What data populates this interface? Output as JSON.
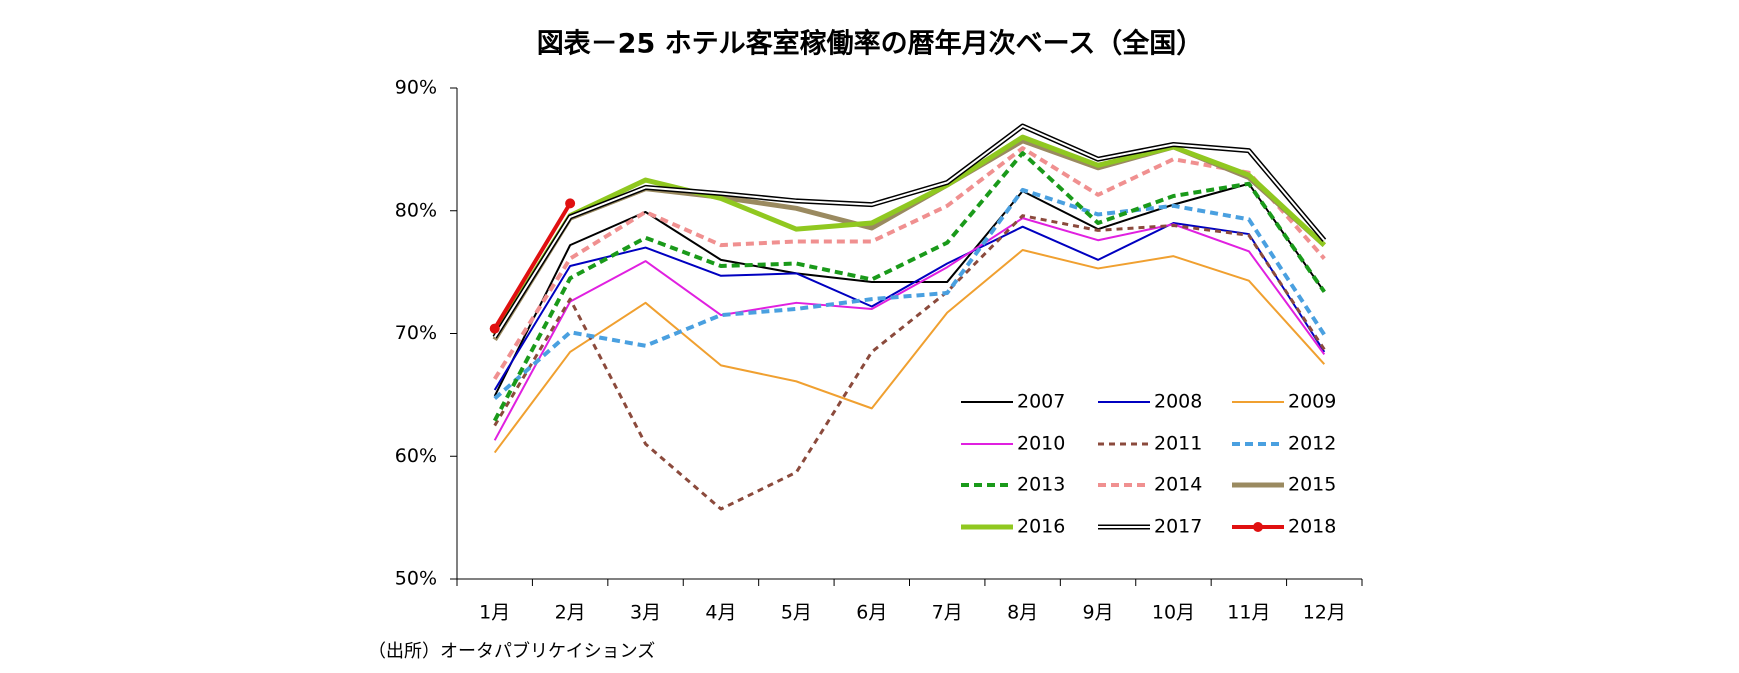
{
  "chart_data": {
    "type": "line",
    "title": "図表－25  ホテル客室稼働率の暦年月次ベース（全国）",
    "source": "（出所）オータパブリケイションズ",
    "categories": [
      "1月",
      "2月",
      "3月",
      "4月",
      "5月",
      "6月",
      "7月",
      "8月",
      "9月",
      "10月",
      "11月",
      "12月"
    ],
    "ylim": [
      50,
      90
    ],
    "yticks": [
      {
        "value": 50,
        "label": "50%"
      },
      {
        "value": 60,
        "label": "60%"
      },
      {
        "value": 70,
        "label": "70%"
      },
      {
        "value": 80,
        "label": "80%"
      },
      {
        "value": 90,
        "label": "90%"
      }
    ],
    "grid": false,
    "series": [
      {
        "name": "2007",
        "color": "#000000",
        "style": "solid",
        "width": 2,
        "values": [
          64.9,
          77.2,
          79.9,
          76.0,
          74.9,
          74.2,
          74.2,
          81.6,
          78.5,
          80.5,
          82.2,
          73.4
        ]
      },
      {
        "name": "2008",
        "color": "#0000c0",
        "style": "solid",
        "width": 2,
        "values": [
          65.4,
          75.5,
          77.0,
          74.7,
          74.9,
          72.2,
          75.7,
          78.7,
          76.0,
          79.0,
          78.1,
          68.5
        ]
      },
      {
        "name": "2009",
        "color": "#f0a030",
        "style": "solid",
        "width": 2,
        "values": [
          60.3,
          68.5,
          72.5,
          67.4,
          66.1,
          63.9,
          71.7,
          76.8,
          75.3,
          76.3,
          74.3,
          67.5
        ]
      },
      {
        "name": "2010",
        "color": "#e020e0",
        "style": "solid",
        "width": 2,
        "values": [
          61.3,
          72.6,
          75.9,
          71.5,
          72.5,
          72.0,
          75.4,
          79.4,
          77.6,
          78.9,
          76.7,
          68.3
        ]
      },
      {
        "name": "2011",
        "color": "#8b4a3c",
        "style": "dashed",
        "width": 3,
        "values": [
          62.5,
          72.8,
          61.0,
          55.7,
          58.7,
          68.5,
          73.4,
          79.6,
          78.4,
          78.8,
          78.0,
          68.7
        ]
      },
      {
        "name": "2012",
        "color": "#4aa0e0",
        "style": "dashed",
        "width": 4,
        "values": [
          64.7,
          70.1,
          69.0,
          71.5,
          72.0,
          72.8,
          73.3,
          81.7,
          79.7,
          80.4,
          79.3,
          69.9
        ]
      },
      {
        "name": "2013",
        "color": "#1a9a1a",
        "style": "dashed",
        "width": 4,
        "values": [
          62.9,
          74.5,
          77.8,
          75.5,
          75.7,
          74.4,
          77.4,
          84.7,
          79.0,
          81.2,
          82.2,
          73.4
        ]
      },
      {
        "name": "2014",
        "color": "#f09090",
        "style": "dashed",
        "width": 4,
        "values": [
          66.3,
          76.1,
          79.9,
          77.2,
          77.5,
          77.5,
          80.4,
          85.1,
          81.3,
          84.2,
          83.1,
          76.1
        ]
      },
      {
        "name": "2015",
        "color": "#9a8a60",
        "style": "solid",
        "width": 5,
        "values": [
          69.5,
          79.4,
          81.8,
          81.1,
          80.2,
          78.6,
          82.1,
          85.7,
          83.5,
          85.2,
          82.7,
          77.2
        ]
      },
      {
        "name": "2016",
        "color": "#90c820",
        "style": "solid",
        "width": 5,
        "values": [
          69.9,
          79.6,
          82.5,
          81.0,
          78.5,
          79.0,
          82.1,
          86.0,
          83.7,
          85.2,
          82.9,
          77.2
        ]
      },
      {
        "name": "2017",
        "color": "#000000",
        "style": "double",
        "width": 5,
        "values": [
          69.7,
          79.5,
          81.9,
          81.4,
          80.8,
          80.5,
          82.3,
          86.9,
          84.2,
          85.4,
          84.9,
          77.6
        ]
      },
      {
        "name": "2018",
        "color": "#e01010",
        "style": "marker",
        "width": 4,
        "values": [
          70.4,
          80.6,
          null,
          null,
          null,
          null,
          null,
          null,
          null,
          null,
          null,
          null
        ]
      }
    ]
  }
}
